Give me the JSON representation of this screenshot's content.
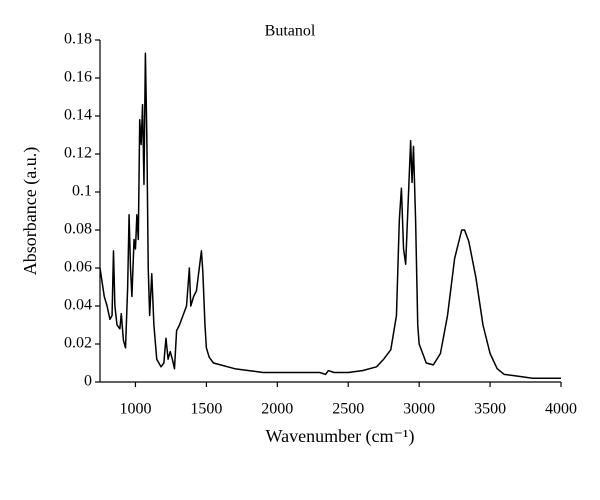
{
  "chart_data": {
    "type": "line",
    "title": "Butanol",
    "x_label": "Wavenumber (cm⁻¹)",
    "y_label": "Absorbance (a.u.)",
    "x": [
      750,
      780,
      800,
      820,
      835,
      845,
      855,
      870,
      890,
      900,
      915,
      930,
      945,
      955,
      965,
      975,
      990,
      1000,
      1010,
      1020,
      1030,
      1040,
      1050,
      1060,
      1070,
      1080,
      1090,
      1100,
      1115,
      1130,
      1150,
      1180,
      1200,
      1215,
      1230,
      1245,
      1260,
      1275,
      1290,
      1310,
      1340,
      1360,
      1380,
      1390,
      1410,
      1430,
      1450,
      1465,
      1475,
      1490,
      1500,
      1520,
      1550,
      1600,
      1650,
      1700,
      1800,
      1900,
      2000,
      2200,
      2300,
      2340,
      2360,
      2400,
      2500,
      2600,
      2700,
      2750,
      2800,
      2840,
      2860,
      2875,
      2890,
      2905,
      2920,
      2940,
      2950,
      2960,
      2975,
      2990,
      3000,
      3050,
      3100,
      3150,
      3200,
      3250,
      3300,
      3320,
      3350,
      3400,
      3450,
      3500,
      3550,
      3600,
      3700,
      3800,
      3900,
      4000
    ],
    "values": [
      0.06,
      0.045,
      0.04,
      0.033,
      0.035,
      0.069,
      0.04,
      0.03,
      0.028,
      0.036,
      0.022,
      0.018,
      0.05,
      0.088,
      0.06,
      0.045,
      0.075,
      0.07,
      0.088,
      0.075,
      0.138,
      0.125,
      0.146,
      0.104,
      0.173,
      0.13,
      0.06,
      0.035,
      0.057,
      0.03,
      0.012,
      0.008,
      0.01,
      0.023,
      0.012,
      0.016,
      0.012,
      0.007,
      0.027,
      0.03,
      0.036,
      0.04,
      0.06,
      0.04,
      0.045,
      0.048,
      0.06,
      0.069,
      0.058,
      0.03,
      0.018,
      0.013,
      0.01,
      0.009,
      0.008,
      0.007,
      0.006,
      0.005,
      0.005,
      0.005,
      0.005,
      0.004,
      0.006,
      0.005,
      0.005,
      0.006,
      0.008,
      0.012,
      0.017,
      0.035,
      0.085,
      0.102,
      0.07,
      0.062,
      0.09,
      0.127,
      0.105,
      0.124,
      0.085,
      0.03,
      0.02,
      0.01,
      0.009,
      0.015,
      0.035,
      0.065,
      0.08,
      0.08,
      0.074,
      0.055,
      0.03,
      0.015,
      0.007,
      0.004,
      0.003,
      0.002,
      0.002,
      0.002
    ],
    "color": "#000000",
    "xlim": [
      750,
      4000
    ],
    "xticks": [
      1000,
      1500,
      2000,
      2500,
      3000,
      3500,
      4000
    ],
    "ylim": [
      0,
      0.18
    ],
    "yticks": [
      0,
      0.02,
      0.04,
      0.06,
      0.08,
      0.1,
      0.12,
      0.14,
      0.16,
      0.18
    ],
    "grid": false
  }
}
